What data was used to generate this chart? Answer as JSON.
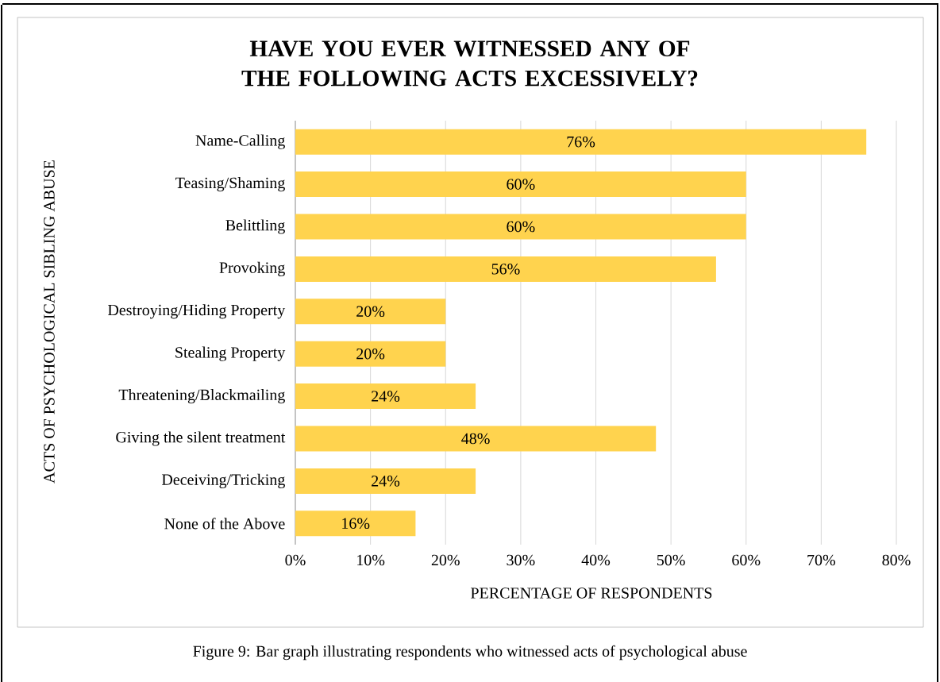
{
  "chart_data": {
    "type": "bar",
    "orientation": "horizontal",
    "title": "HAVE YOU EVER WITNESSED ANY OF THE FOLLOWING ACTS EXCESSIVELY?",
    "xlabel": "PERCENTAGE OF RESPONDENTS",
    "ylabel": "ACTS OF PSYCHOLOGICAL SIBLING ABUSE",
    "categories": [
      "Name-Calling",
      "Teasing/Shaming",
      "Belittling",
      "Provoking",
      "Destroying/Hiding Property",
      "Stealing Property",
      "Threatening/Blackmailing",
      "Giving the silent treatment",
      "Deceiving/Tricking",
      "None of the Above"
    ],
    "values": [
      76,
      60,
      60,
      56,
      20,
      20,
      24,
      48,
      24,
      16
    ],
    "value_labels": [
      "76%",
      "60%",
      "60%",
      "56%",
      "20%",
      "20%",
      "24%",
      "48%",
      "24%",
      "16%"
    ],
    "color": "#ffd34e",
    "xlim": [
      0,
      80
    ],
    "xticks": [
      {
        "value": 0,
        "label": "0%"
      },
      {
        "value": 10,
        "label": "10%"
      },
      {
        "value": 20,
        "label": "20%"
      },
      {
        "value": 30,
        "label": "30%"
      },
      {
        "value": 40,
        "label": "40%"
      },
      {
        "value": 50,
        "label": "50%"
      },
      {
        "value": 60,
        "label": "60%"
      },
      {
        "value": 70,
        "label": "70%"
      },
      {
        "value": 80,
        "label": "80%"
      }
    ],
    "grid": "x",
    "annotations": [
      "Figure 9: Bar graph illustrating respondents who witnessed acts of psychological abuse"
    ]
  }
}
